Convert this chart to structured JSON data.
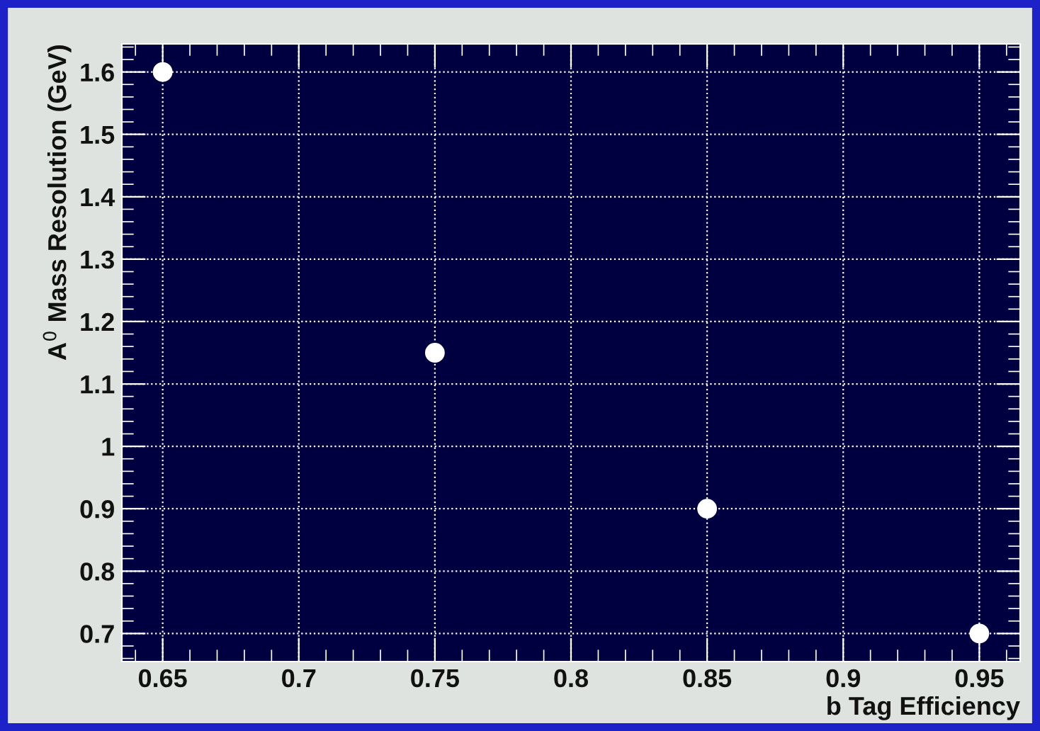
{
  "chart_data": {
    "type": "scatter",
    "xlabel": "b Tag Efficiency",
    "ylabel": "A$^{0}$ Mass Resolution (GeV)",
    "x": [
      0.65,
      0.75,
      0.85,
      0.95
    ],
    "series": [
      {
        "color": "#ffffff",
        "values": [
          1.6,
          1.15,
          0.9,
          0.7
        ]
      }
    ],
    "xlim": [
      0.635,
      0.965
    ],
    "xticks": [
      0.65,
      0.7,
      0.75,
      0.8,
      0.85,
      0.9,
      0.95
    ],
    "ylim": [
      0.655,
      1.645
    ],
    "yticks": [
      0.7,
      0.8,
      0.9,
      1,
      1.1,
      1.2,
      1.3,
      1.4,
      1.5,
      1.6
    ],
    "grid": true,
    "marker": "circle"
  }
}
